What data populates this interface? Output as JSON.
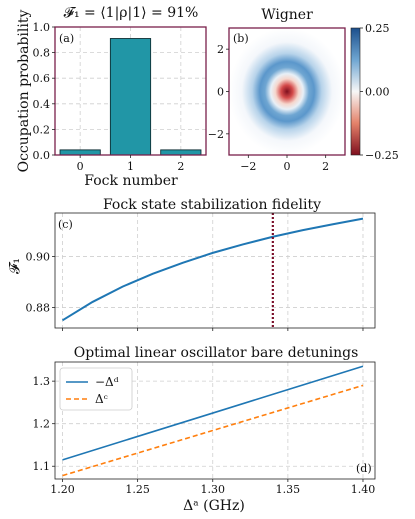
{
  "chart_data": [
    {
      "id": "a",
      "type": "bar",
      "panel_label": "(a)",
      "title": "𝓕₁ = ⟨1|ρ|1⟩ = 91%",
      "xlabel": "Fock number",
      "ylabel": "Occupation probability",
      "categories": [
        "0",
        "1",
        "2"
      ],
      "values": [
        0.04,
        0.91,
        0.04
      ],
      "ylim": [
        0,
        1.0
      ],
      "yticks": [
        "0.0",
        "0.2",
        "0.4",
        "0.6",
        "0.8",
        "1.0"
      ],
      "grid": true,
      "colors": {
        "bar": "#2196a6",
        "bar_edge": "#0e2f35",
        "frame": "#7a1f4a"
      }
    },
    {
      "id": "b",
      "type": "heatmap",
      "panel_label": "(b)",
      "title": "Wigner",
      "xlim": [
        -3,
        3
      ],
      "ylim": [
        -3,
        3
      ],
      "xticks": [
        "−2",
        "0",
        "2"
      ],
      "yticks": [
        "−2",
        "0",
        "2"
      ],
      "colorbar": {
        "min": -0.25,
        "max": 0.25,
        "ticks": [
          "0.25",
          "0.00",
          "−0.25"
        ]
      },
      "colormap": "RdBu",
      "colors": {
        "negative": "#7f0f1e",
        "zero": "#f7f7f7",
        "positive": "#1c4f8c"
      }
    },
    {
      "id": "c",
      "type": "line",
      "panel_label": "(c)",
      "title": "Fock state stabilization fidelity",
      "xlabel": "",
      "ylabel": "𝓕₁",
      "x": [
        1.2,
        1.22,
        1.24,
        1.26,
        1.28,
        1.3,
        1.32,
        1.34,
        1.36,
        1.38,
        1.4
      ],
      "series": [
        {
          "values": [
            0.875,
            0.8822,
            0.8882,
            0.8932,
            0.8975,
            0.9014,
            0.9047,
            0.9077,
            0.9103,
            0.9126,
            0.9148
          ]
        }
      ],
      "vline_x": 1.34,
      "xlim": [
        1.195,
        1.408
      ],
      "ylim": [
        0.872,
        0.917
      ],
      "yticks": [
        "0.88",
        "0.90"
      ],
      "grid": true,
      "colors": {
        "line": "#1f77b4",
        "vline": "#7a0f2a"
      }
    },
    {
      "id": "d",
      "type": "line",
      "panel_label": "(d)",
      "title": "Optimal linear oscillator bare detunings",
      "xlabel": "Δᵃ (GHz)",
      "ylabel": "",
      "x": [
        1.2,
        1.25,
        1.3,
        1.35,
        1.4
      ],
      "series": [
        {
          "name": "−Δᵈ",
          "values": [
            1.115,
            1.17,
            1.225,
            1.28,
            1.335
          ],
          "color": "#1f77b4",
          "dash": "solid"
        },
        {
          "name": "Δᶜ",
          "values": [
            1.078,
            1.131,
            1.184,
            1.237,
            1.29
          ],
          "color": "#ff7f0e",
          "dash": "dashed"
        }
      ],
      "xlim": [
        1.195,
        1.408
      ],
      "ylim": [
        1.07,
        1.345
      ],
      "xticks": [
        "1.20",
        "1.25",
        "1.30",
        "1.35",
        "1.40"
      ],
      "yticks": [
        "1.1",
        "1.2",
        "1.3"
      ],
      "legend": "top-left",
      "grid": true
    }
  ]
}
